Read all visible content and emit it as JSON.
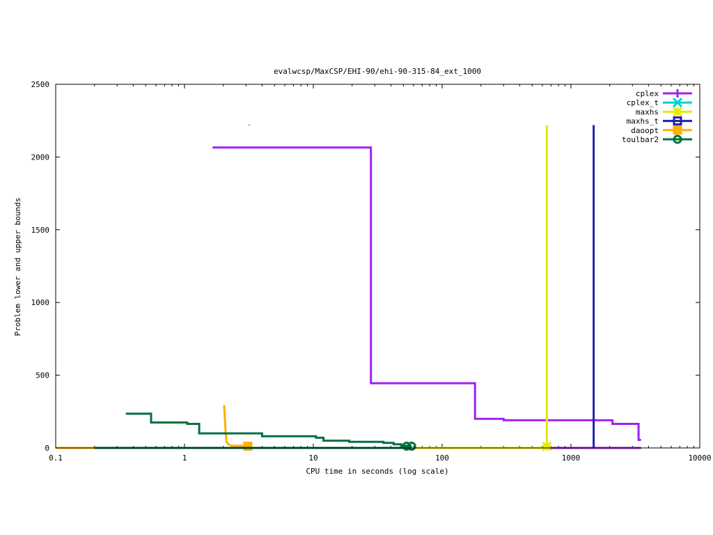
{
  "chart_data": {
    "type": "line",
    "title": "evalwcsp/MaxCSP/EHI-90/ehi-90-315-84_ext_1000",
    "xlabel": "CPU time in seconds (log scale)",
    "ylabel": "Problem lower and upper bounds",
    "xscale": "log",
    "xlim": [
      0.1,
      10000
    ],
    "ylim": [
      0,
      2500
    ],
    "grid": false,
    "legend_position": "top-right",
    "x_ticks": [
      {
        "value": 0.1,
        "label": "0.1"
      },
      {
        "value": 1,
        "label": "1"
      },
      {
        "value": 10,
        "label": "10"
      },
      {
        "value": 100,
        "label": "100"
      },
      {
        "value": 1000,
        "label": "1000"
      },
      {
        "value": 10000,
        "label": "10000"
      }
    ],
    "y_ticks": [
      {
        "value": 0,
        "label": "0"
      },
      {
        "value": 500,
        "label": "500"
      },
      {
        "value": 1000,
        "label": "1000"
      },
      {
        "value": 1500,
        "label": "1500"
      },
      {
        "value": 2000,
        "label": "2000"
      },
      {
        "value": 2500,
        "label": "2500"
      }
    ],
    "series": [
      {
        "name": "cplex",
        "color": "#a020f0",
        "marker": "plus",
        "segments": [
          [
            [
              1.65,
              2065
            ],
            [
              28,
              2065
            ],
            [
              28,
              445
            ],
            [
              180,
              445
            ],
            [
              180,
              200
            ],
            [
              300,
              200
            ],
            [
              300,
              190
            ],
            [
              2100,
              190
            ],
            [
              2100,
              165
            ],
            [
              3350,
              165
            ],
            [
              3350,
              55
            ],
            [
              3500,
              55
            ]
          ],
          [
            [
              490,
              0
            ],
            [
              3500,
              0
            ]
          ]
        ]
      },
      {
        "name": "cplex_t",
        "color": "#00d0d0",
        "marker": "cross",
        "segments": [
          [
            [
              3.15,
              2220
            ],
            [
              3.2,
              2220
            ]
          ]
        ]
      },
      {
        "name": "maxhs",
        "color": "#e8e800",
        "marker": "star",
        "segments": [
          [
            [
              650,
              2220
            ],
            [
              650,
              0
            ]
          ],
          [
            [
              0.1,
              0
            ],
            [
              650,
              0
            ]
          ]
        ],
        "markers": [
          [
            650,
            10
          ]
        ]
      },
      {
        "name": "maxhs_t",
        "color": "#2020b0",
        "marker": "square",
        "segments": [
          [
            [
              1500,
              2220
            ],
            [
              1500,
              0
            ]
          ]
        ]
      },
      {
        "name": "daoopt",
        "color": "#ffb000",
        "marker": "filled-square",
        "segments": [
          [
            [
              2.03,
              295
            ],
            [
              2.05,
              230
            ],
            [
              2.08,
              130
            ],
            [
              2.12,
              40
            ],
            [
              2.2,
              25
            ],
            [
              2.3,
              15
            ],
            [
              3.1,
              15
            ]
          ],
          [
            [
              0.1,
              0
            ],
            [
              2.2,
              0
            ]
          ]
        ],
        "markers": [
          [
            3.1,
            12
          ]
        ]
      },
      {
        "name": "toulbar2",
        "color": "#007040",
        "marker": "circle",
        "segments": [
          [
            [
              0.35,
              235
            ],
            [
              0.55,
              235
            ],
            [
              0.55,
              175
            ],
            [
              1.05,
              175
            ],
            [
              1.05,
              165
            ],
            [
              1.3,
              165
            ],
            [
              1.3,
              100
            ],
            [
              4,
              100
            ],
            [
              4,
              80
            ],
            [
              10.5,
              80
            ],
            [
              10.5,
              70
            ],
            [
              12,
              70
            ],
            [
              12,
              50
            ],
            [
              19,
              50
            ],
            [
              19,
              42
            ],
            [
              35,
              42
            ],
            [
              35,
              35
            ],
            [
              42,
              35
            ],
            [
              42,
              25
            ],
            [
              48,
              25
            ],
            [
              48,
              15
            ],
            [
              58,
              15
            ]
          ],
          [
            [
              0.2,
              0
            ],
            [
              58,
              0
            ]
          ]
        ],
        "markers": [
          [
            53,
            12
          ],
          [
            58,
            12
          ]
        ]
      }
    ]
  }
}
